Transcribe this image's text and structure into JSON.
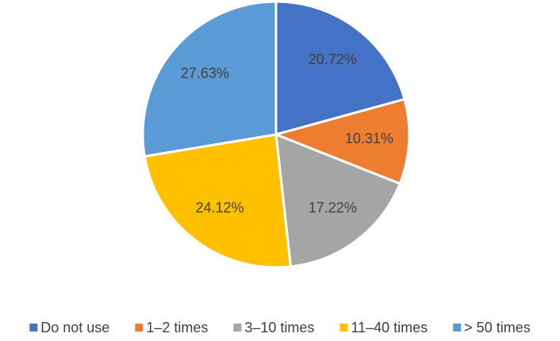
{
  "chart_data": {
    "type": "pie",
    "categories": [
      "Do not use",
      "1–2 times",
      "3–10 times",
      "11–40 times",
      "> 50 times"
    ],
    "values": [
      20.72,
      10.31,
      17.22,
      24.12,
      27.63
    ],
    "value_labels": [
      "20.72%",
      "10.31%",
      "17.22%",
      "24.12%",
      "27.63%"
    ],
    "colors": [
      "#4472c4",
      "#ed7d31",
      "#a5a5a5",
      "#ffc000",
      "#5b9bd5"
    ],
    "legend": "bottom"
  }
}
